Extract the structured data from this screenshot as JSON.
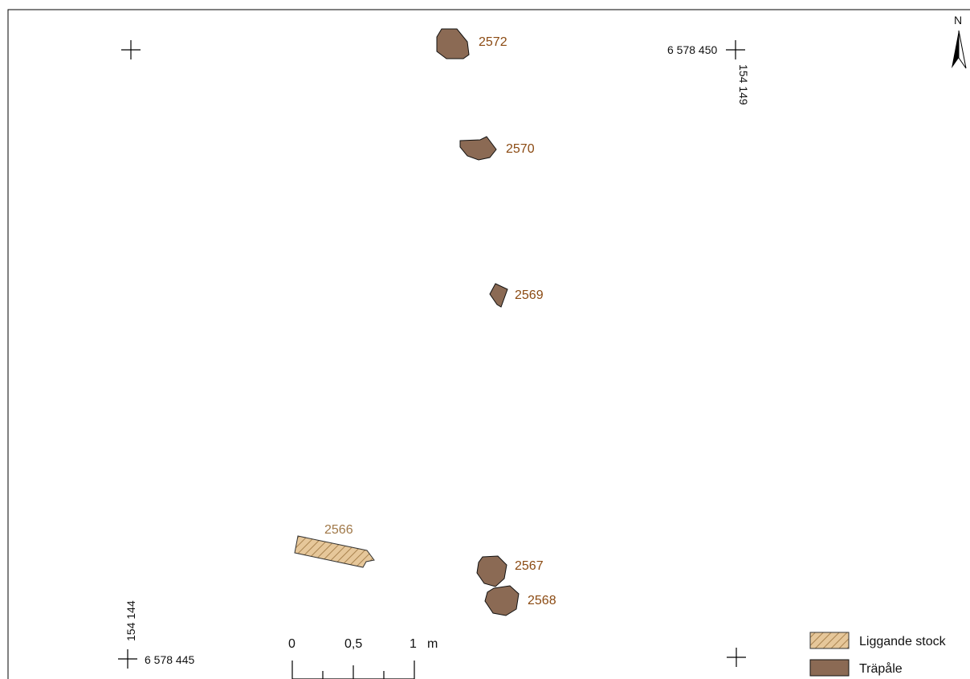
{
  "colors": {
    "frame": "#000000",
    "trapale_fill": "#8b6a54",
    "trapale_label": "#8b4a12",
    "stock_fill": "#e6c79a",
    "stock_hatch": "#a9834f",
    "stock_label": "#a07848"
  },
  "north_arrow": {
    "label": "N"
  },
  "features": [
    {
      "id": "2572",
      "type": "Träpåle"
    },
    {
      "id": "2570",
      "type": "Träpåle"
    },
    {
      "id": "2569",
      "type": "Träpåle"
    },
    {
      "id": "2567",
      "type": "Träpåle"
    },
    {
      "id": "2568",
      "type": "Träpåle"
    },
    {
      "id": "2566",
      "type": "Liggande stock"
    }
  ],
  "grid": {
    "ne_north": "6 578 450",
    "ne_east": "154 149",
    "sw_north": "6 578 445",
    "sw_east": "154 144"
  },
  "scale_bar": {
    "tick_0": "0",
    "tick_half": "0,5",
    "tick_1": "1",
    "unit": "m"
  },
  "legend": [
    {
      "label": "Liggande stock",
      "symbol": "hatched"
    },
    {
      "label": "Träpåle",
      "symbol": "solid"
    }
  ]
}
